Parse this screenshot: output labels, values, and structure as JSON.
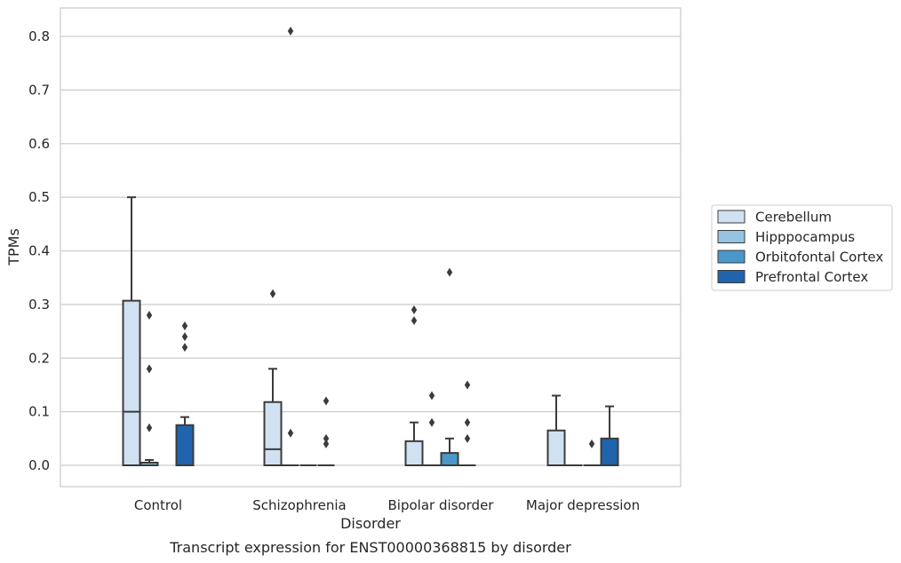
{
  "chart_data": {
    "type": "box",
    "title": "",
    "caption": "Transcript expression for ENST00000368815 by disorder",
    "xlabel": "Disorder",
    "ylabel": "TPMs",
    "ylim": [
      -0.04,
      0.85
    ],
    "yticks": [
      0.0,
      0.1,
      0.2,
      0.3,
      0.4,
      0.5,
      0.6,
      0.7,
      0.8
    ],
    "ytick_labels": [
      "0.0",
      "0.1",
      "0.2",
      "0.3",
      "0.4",
      "0.5",
      "0.6",
      "0.7",
      "0.8"
    ],
    "grid": true,
    "legend_position": "right",
    "categories": [
      "Control",
      "Schizophrenia",
      "Bipolar disorder",
      "Major depression"
    ],
    "series": [
      {
        "name": "Cerebellum",
        "color": "#d0e1f2",
        "boxes": [
          {
            "q1": 0,
            "median": 0.1,
            "q3": 0.307,
            "whisker_low": 0,
            "whisker_high": 0.5,
            "outliers": []
          },
          {
            "q1": 0,
            "median": 0.03,
            "q3": 0.118,
            "whisker_low": 0,
            "whisker_high": 0.18,
            "outliers": [
              0.32
            ]
          },
          {
            "q1": 0,
            "median": 0,
            "q3": 0.045,
            "whisker_low": 0,
            "whisker_high": 0.08,
            "outliers": [
              0.27,
              0.29
            ]
          },
          {
            "q1": 0,
            "median": 0,
            "q3": 0.065,
            "whisker_low": 0,
            "whisker_high": 0.13,
            "outliers": []
          }
        ]
      },
      {
        "name": "Hipppocampus",
        "color": "#94c4df",
        "boxes": [
          {
            "q1": 0,
            "median": 0,
            "q3": 0.005,
            "whisker_low": 0,
            "whisker_high": 0.01,
            "outliers": [
              0.07,
              0.18,
              0.28
            ]
          },
          {
            "q1": 0,
            "median": 0,
            "q3": 0,
            "whisker_low": 0,
            "whisker_high": 0,
            "outliers": [
              0.06,
              0.81
            ]
          },
          {
            "q1": 0,
            "median": 0,
            "q3": 0,
            "whisker_low": 0,
            "whisker_high": 0,
            "outliers": [
              0.08,
              0.13
            ]
          },
          {
            "q1": 0,
            "median": 0,
            "q3": 0,
            "whisker_low": 0,
            "whisker_high": 0,
            "outliers": []
          }
        ]
      },
      {
        "name": "Orbitofontal Cortex",
        "color": "#4a98c9",
        "boxes": [
          null,
          {
            "q1": 0,
            "median": 0,
            "q3": 0,
            "whisker_low": 0,
            "whisker_high": 0,
            "outliers": []
          },
          {
            "q1": 0,
            "median": 0,
            "q3": 0.023,
            "whisker_low": 0,
            "whisker_high": 0.05,
            "outliers": [
              0.36
            ]
          },
          {
            "q1": 0,
            "median": 0,
            "q3": 0,
            "whisker_low": 0,
            "whisker_high": 0,
            "outliers": [
              0.04
            ]
          }
        ]
      },
      {
        "name": "Prefrontal Cortex",
        "color": "#2064ae",
        "boxes": [
          {
            "q1": 0,
            "median": 0,
            "q3": 0.075,
            "whisker_low": 0,
            "whisker_high": 0.09,
            "outliers": [
              0.22,
              0.24,
              0.26
            ]
          },
          {
            "q1": 0,
            "median": 0,
            "q3": 0,
            "whisker_low": 0,
            "whisker_high": 0,
            "outliers": [
              0.04,
              0.05,
              0.12
            ]
          },
          {
            "q1": 0,
            "median": 0,
            "q3": 0,
            "whisker_low": 0,
            "whisker_high": 0,
            "outliers": [
              0.05,
              0.08,
              0.15
            ]
          },
          {
            "q1": 0,
            "median": 0,
            "q3": 0.05,
            "whisker_low": 0,
            "whisker_high": 0.11,
            "outliers": []
          }
        ]
      }
    ]
  }
}
